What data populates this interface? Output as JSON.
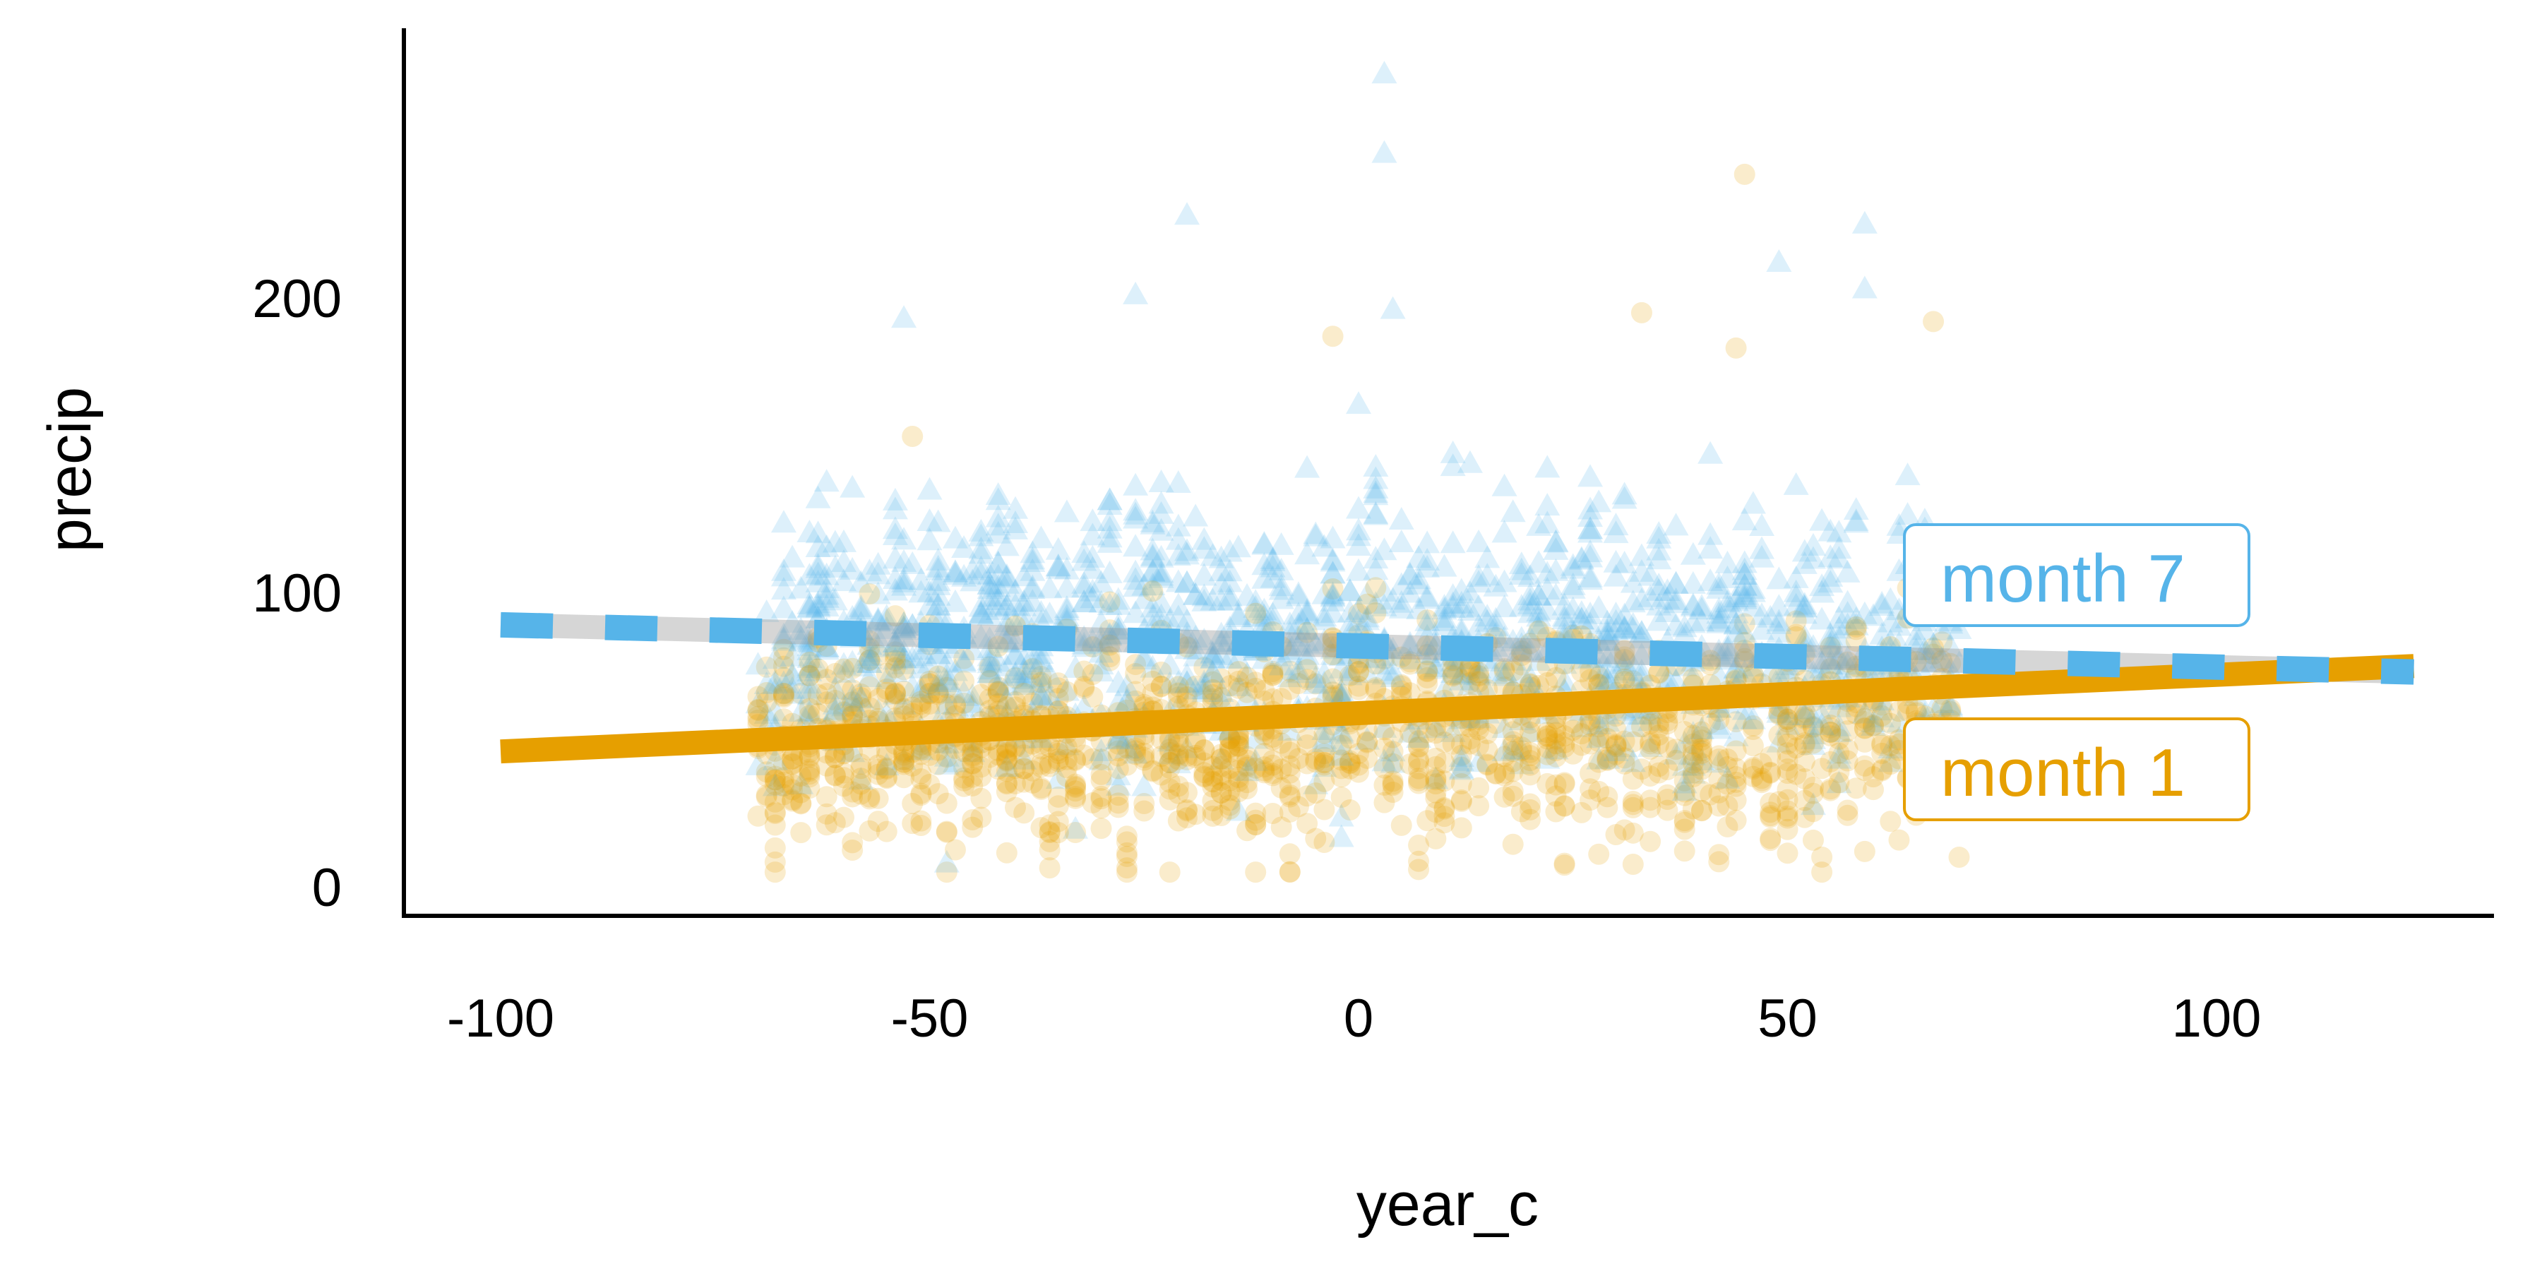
{
  "chart_data": {
    "type": "scatter",
    "title": "",
    "xlabel": "year_c",
    "ylabel": "precip",
    "xlim": [
      -110,
      135
    ],
    "ylim": [
      -8,
      290
    ],
    "xticks": [
      -100,
      -50,
      0,
      50,
      100
    ],
    "xtick_labels": [
      "-100",
      "-50",
      "0",
      "50",
      "100"
    ],
    "yticks": [
      0,
      100,
      200
    ],
    "ytick_labels": [
      "0",
      "100",
      "200"
    ],
    "grid": false,
    "legend": "direct labels at right",
    "series": [
      {
        "name": "month 1",
        "label": "month 1",
        "marker": "circle",
        "color": "#E69F00",
        "scatter_x_range": [
          -70,
          70
        ],
        "scatter_center": 50,
        "scatter_spread": 30,
        "n_points": 1400,
        "outliers": [
          [
            45,
            242
          ],
          [
            33,
            195
          ],
          [
            -3,
            187
          ],
          [
            44,
            183
          ],
          [
            67,
            192
          ],
          [
            -52,
            153
          ]
        ],
        "fit_line": {
          "style": "solid",
          "x": [
            -100,
            123
          ],
          "y": [
            46,
            75
          ]
        }
      },
      {
        "name": "month 7",
        "label": "month 7",
        "marker": "triangle",
        "color": "#56B4E9",
        "scatter_x_range": [
          -70,
          70
        ],
        "scatter_center": 82,
        "scatter_spread": 38,
        "n_points": 1400,
        "outliers": [
          [
            3,
            276
          ],
          [
            3,
            249
          ],
          [
            -20,
            228
          ],
          [
            59,
            225
          ],
          [
            49,
            212
          ],
          [
            59,
            203
          ],
          [
            -26,
            201
          ],
          [
            4,
            196
          ],
          [
            -53,
            193
          ]
        ],
        "fit_line": {
          "style": "dashed",
          "x": [
            -100,
            123
          ],
          "y": [
            89,
            73
          ]
        }
      }
    ]
  }
}
